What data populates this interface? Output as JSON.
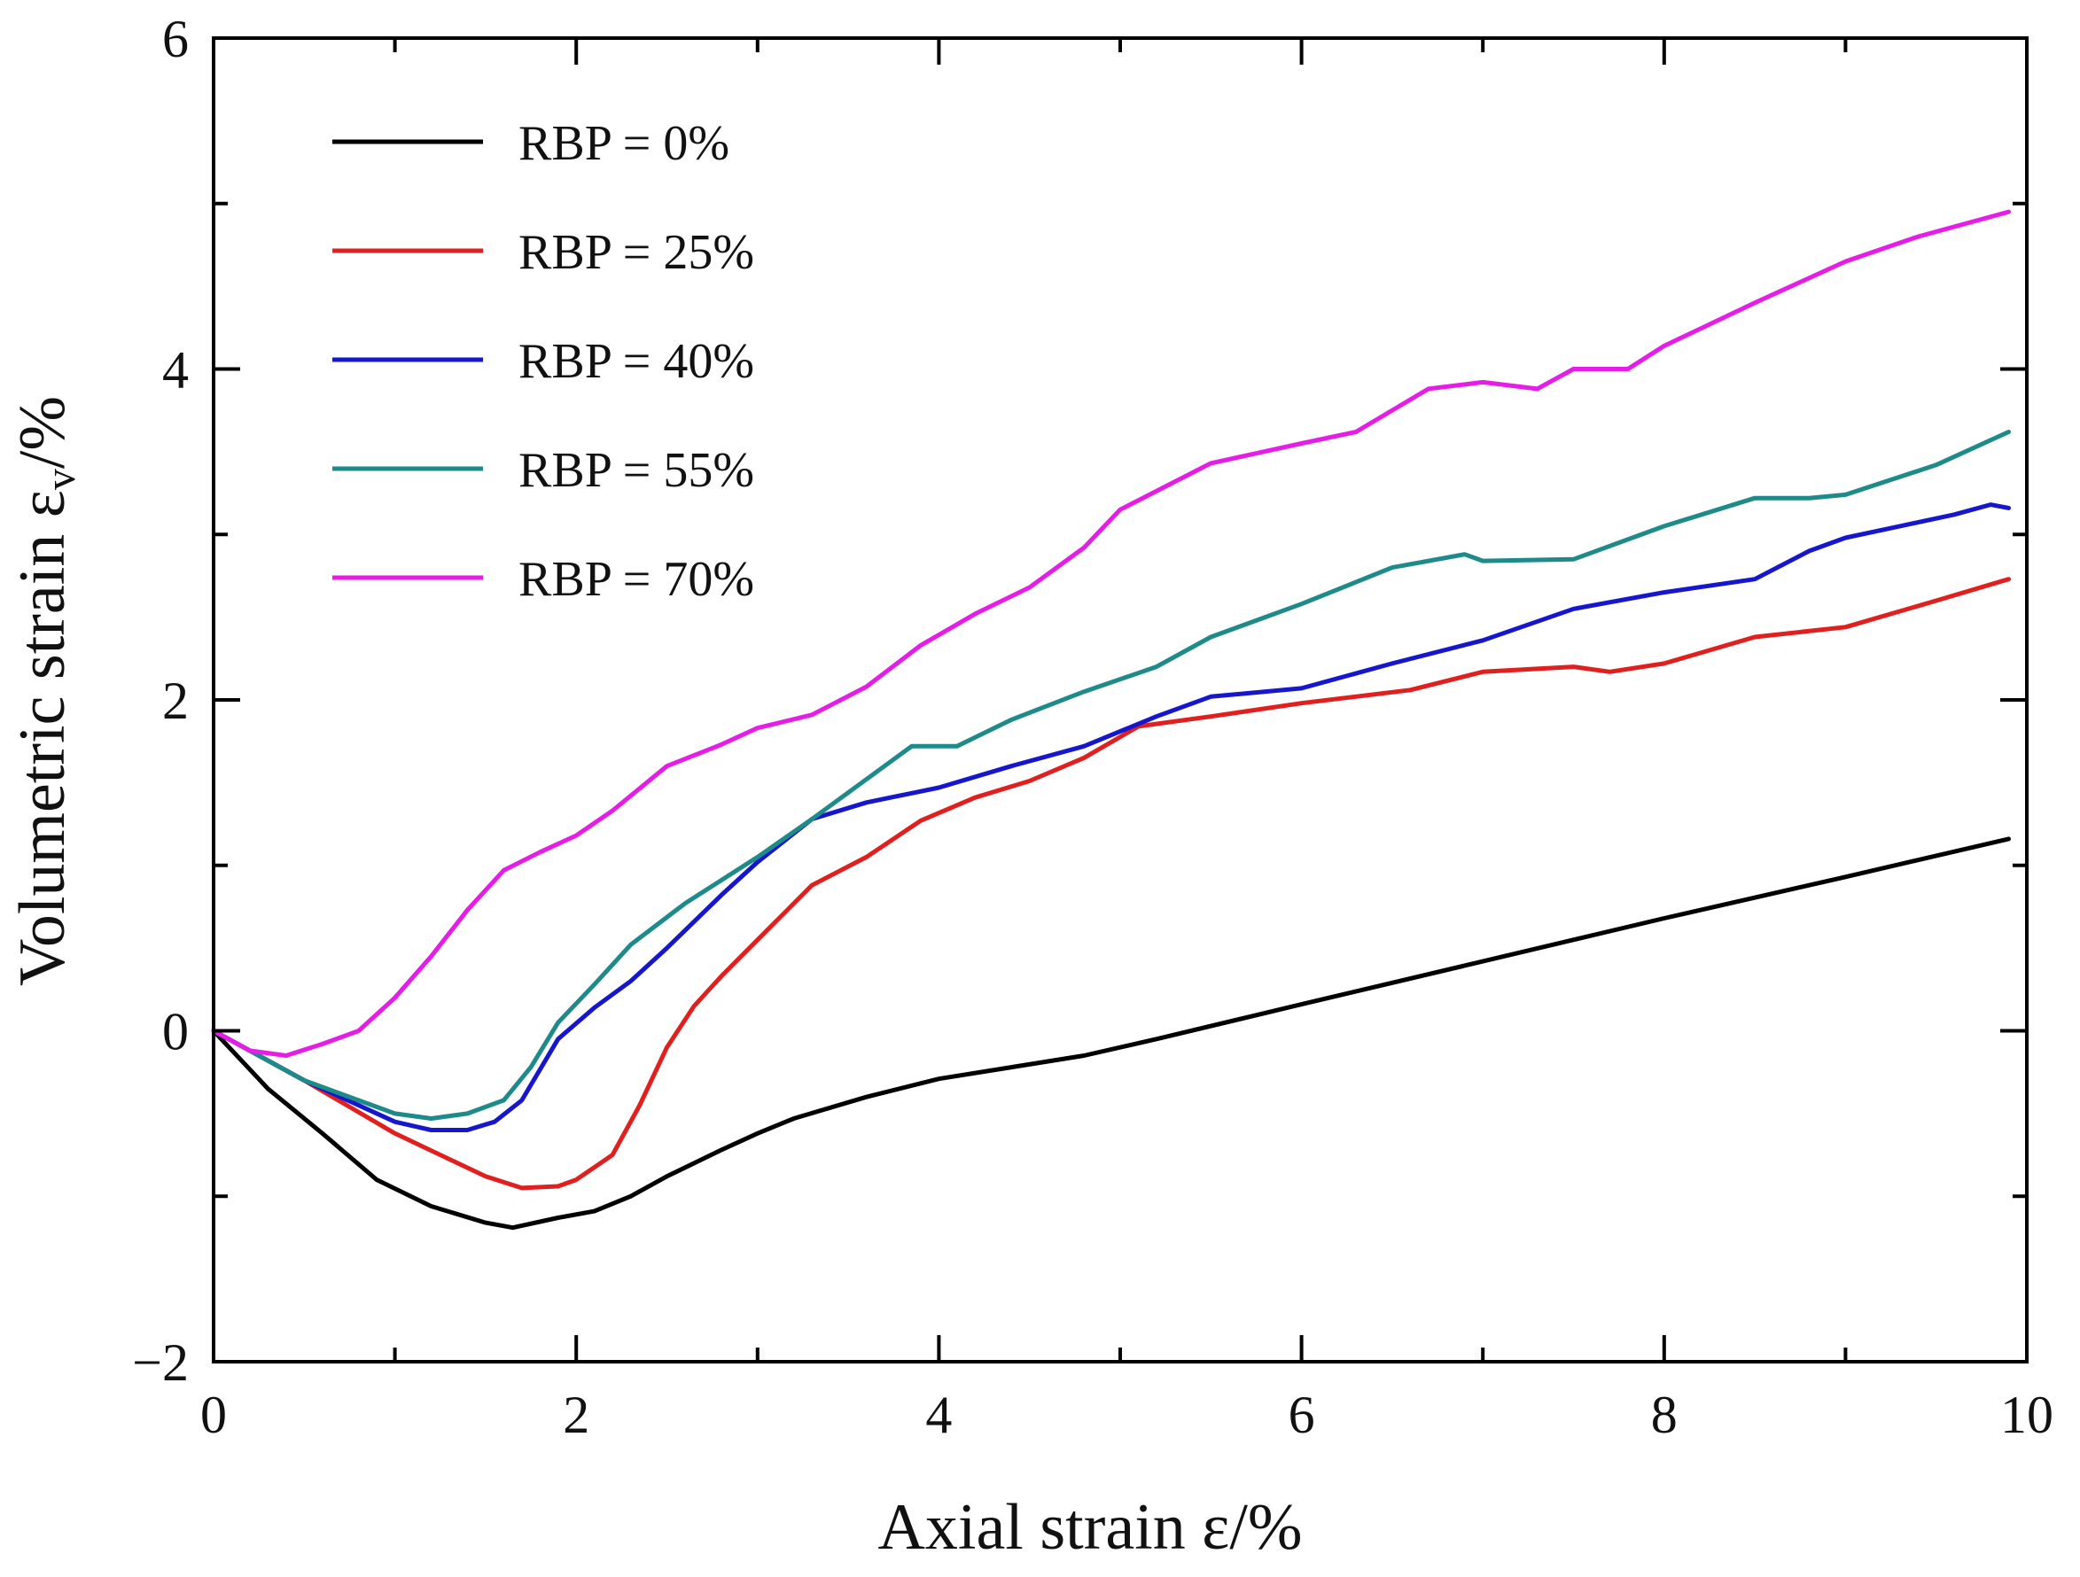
{
  "chart_data": {
    "type": "line",
    "title": "",
    "xlabel": "Axial strain ε/%",
    "ylabel": "Volumetric strain ε",
    "ylabel_sub": "v",
    "ylabel_suffix": "/%",
    "xlim": [
      0,
      10
    ],
    "ylim": [
      -2,
      6
    ],
    "x_ticks": [
      0,
      2,
      4,
      6,
      8,
      10
    ],
    "x_tick_labels": [
      "0",
      "2",
      "4",
      "6",
      "8",
      "10"
    ],
    "y_ticks": [
      -2,
      0,
      2,
      4,
      6
    ],
    "y_tick_labels": [
      "−2",
      "0",
      "2",
      "4",
      "6"
    ],
    "grid": false,
    "legend_position": "top-left",
    "series": [
      {
        "name": "RBP = 0%",
        "color": "#000000",
        "x": [
          0,
          0.3,
          0.6,
          0.9,
          1.2,
          1.5,
          1.65,
          1.9,
          2.1,
          2.3,
          2.5,
          2.8,
          3.0,
          3.2,
          3.6,
          4.0,
          4.4,
          4.8,
          5.2,
          6.0,
          7.0,
          8.0,
          9.0,
          9.9
        ],
        "values": [
          0,
          -0.35,
          -0.62,
          -0.9,
          -1.06,
          -1.16,
          -1.19,
          -1.13,
          -1.09,
          -1.0,
          -0.88,
          -0.72,
          -0.62,
          -0.53,
          -0.4,
          -0.29,
          -0.22,
          -0.15,
          -0.05,
          0.16,
          0.42,
          0.68,
          0.93,
          1.16
        ]
      },
      {
        "name": "RBP = 25%",
        "color": "#e0201f",
        "x": [
          0,
          0.5,
          1.0,
          1.5,
          1.7,
          1.9,
          2.0,
          2.2,
          2.35,
          2.5,
          2.65,
          2.8,
          3.0,
          3.3,
          3.6,
          3.9,
          4.2,
          4.5,
          4.8,
          5.1,
          5.5,
          6.0,
          6.6,
          7.0,
          7.5,
          7.7,
          8.0,
          8.5,
          9.0,
          9.5,
          9.9
        ],
        "values": [
          0,
          -0.3,
          -0.62,
          -0.88,
          -0.95,
          -0.94,
          -0.9,
          -0.75,
          -0.45,
          -0.1,
          0.15,
          0.33,
          0.55,
          0.88,
          1.05,
          1.27,
          1.41,
          1.51,
          1.65,
          1.84,
          1.9,
          1.98,
          2.06,
          2.17,
          2.2,
          2.17,
          2.22,
          2.38,
          2.44,
          2.6,
          2.73
        ]
      },
      {
        "name": "RBP = 40%",
        "color": "#1616cc",
        "x": [
          0,
          0.5,
          1.0,
          1.2,
          1.4,
          1.55,
          1.7,
          1.9,
          2.1,
          2.3,
          2.5,
          2.8,
          3.0,
          3.3,
          3.6,
          4.0,
          4.4,
          4.8,
          5.2,
          5.5,
          6.0,
          6.5,
          7.0,
          7.5,
          8.0,
          8.5,
          8.8,
          9.0,
          9.3,
          9.6,
          9.8,
          9.9
        ],
        "values": [
          0,
          -0.3,
          -0.55,
          -0.6,
          -0.6,
          -0.55,
          -0.42,
          -0.05,
          0.14,
          0.3,
          0.5,
          0.82,
          1.02,
          1.28,
          1.38,
          1.47,
          1.6,
          1.72,
          1.9,
          2.02,
          2.07,
          2.22,
          2.36,
          2.55,
          2.65,
          2.73,
          2.9,
          2.98,
          3.05,
          3.12,
          3.18,
          3.16
        ]
      },
      {
        "name": "RBP = 55%",
        "color": "#1e8a8a",
        "x": [
          0,
          0.5,
          1.0,
          1.2,
          1.4,
          1.6,
          1.75,
          1.9,
          2.1,
          2.3,
          2.6,
          3.0,
          3.3,
          3.6,
          3.85,
          4.1,
          4.4,
          4.8,
          5.2,
          5.5,
          6.0,
          6.5,
          6.9,
          7.0,
          7.5,
          8.0,
          8.5,
          8.8,
          9.0,
          9.5,
          9.9
        ],
        "values": [
          0,
          -0.3,
          -0.5,
          -0.53,
          -0.5,
          -0.42,
          -0.22,
          0.05,
          0.28,
          0.52,
          0.77,
          1.05,
          1.28,
          1.52,
          1.72,
          1.72,
          1.88,
          2.05,
          2.2,
          2.38,
          2.58,
          2.8,
          2.88,
          2.84,
          2.85,
          3.05,
          3.22,
          3.22,
          3.24,
          3.42,
          3.62
        ]
      },
      {
        "name": "RBP = 70%",
        "color": "#e51de6",
        "x": [
          0,
          0.2,
          0.4,
          0.6,
          0.8,
          1.0,
          1.2,
          1.4,
          1.6,
          1.8,
          2.0,
          2.2,
          2.5,
          2.8,
          3.0,
          3.3,
          3.6,
          3.9,
          4.2,
          4.5,
          4.8,
          5.0,
          5.5,
          6.0,
          6.3,
          6.7,
          7.0,
          7.3,
          7.5,
          7.8,
          8.0,
          8.5,
          9.0,
          9.4,
          9.9
        ],
        "values": [
          0,
          -0.12,
          -0.15,
          -0.08,
          0.0,
          0.2,
          0.45,
          0.73,
          0.97,
          1.08,
          1.18,
          1.33,
          1.6,
          1.73,
          1.83,
          1.91,
          2.08,
          2.33,
          2.52,
          2.68,
          2.92,
          3.15,
          3.43,
          3.55,
          3.62,
          3.88,
          3.92,
          3.88,
          4.0,
          4.0,
          4.14,
          4.4,
          4.65,
          4.8,
          4.95
        ]
      }
    ]
  }
}
